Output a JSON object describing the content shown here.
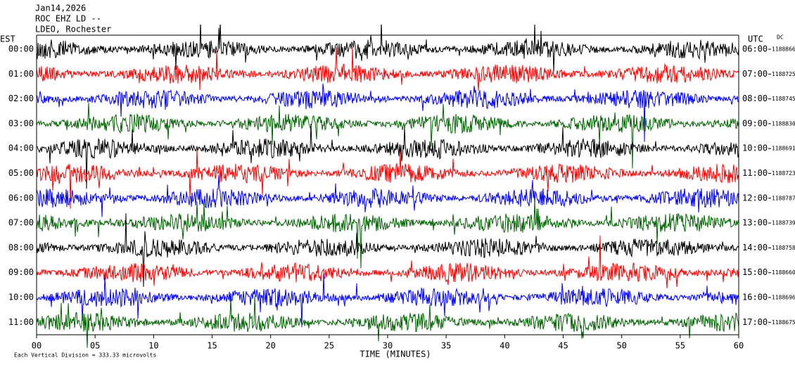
{
  "chart_data": {
    "type": "helicorder",
    "title_lines": [
      "Jan14,2026",
      "ROC EHZ LD --",
      "LDEO, Rochester"
    ],
    "left_axis_label": "EST",
    "right_axis_label": "UTC",
    "dc_label": "DC",
    "xlabel": "TIME (MINUTES)",
    "footnote": "Each Vertical Division =  333.33 microvolts",
    "xlim": [
      0,
      60
    ],
    "xticks": [
      {
        "value": 0,
        "label": "00"
      },
      {
        "value": 5,
        "label": "05"
      },
      10,
      15,
      20,
      25,
      30,
      35,
      40,
      45,
      50,
      55,
      60
    ],
    "colors": [
      "#000000",
      "#ff0000",
      "#0000ff",
      "#006400"
    ],
    "rows": [
      {
        "left": "00:00",
        "right": "06:00",
        "dc": 1188866
      },
      {
        "left": "01:00",
        "right": "07:00",
        "dc": 1188725
      },
      {
        "left": "02:00",
        "right": "08:00",
        "dc": 1188745
      },
      {
        "left": "03:00",
        "right": "09:00",
        "dc": 1188830
      },
      {
        "left": "04:00",
        "right": "10:00",
        "dc": 1188691
      },
      {
        "left": "05:00",
        "right": "11:00",
        "dc": 1188723
      },
      {
        "left": "06:00",
        "right": "12:00",
        "dc": 1188787
      },
      {
        "left": "07:00",
        "right": "13:00",
        "dc": 1188739
      },
      {
        "left": "08:00",
        "right": "14:00",
        "dc": 1188758
      },
      {
        "left": "09:00",
        "right": "15:00",
        "dc": 1188660
      },
      {
        "left": "10:00",
        "right": "16:00",
        "dc": 1188696
      },
      {
        "left": "11:00",
        "right": "17:00",
        "dc": 1188675
      }
    ]
  }
}
